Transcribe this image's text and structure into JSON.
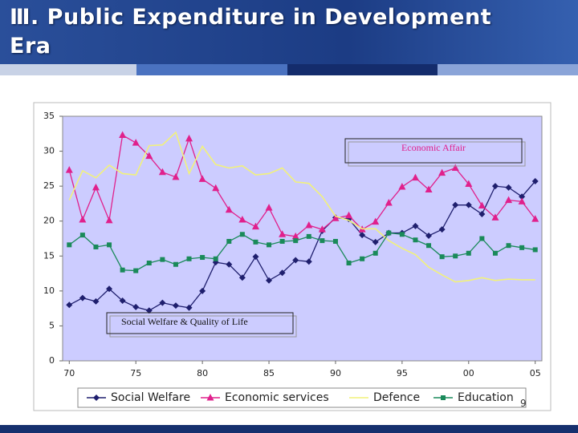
{
  "slide": {
    "title": "Ⅲ. Public Expenditure in Development Era",
    "page_number": "9"
  },
  "chart_data": {
    "type": "line",
    "x": [
      70,
      71,
      72,
      73,
      74,
      75,
      76,
      77,
      78,
      79,
      80,
      81,
      82,
      83,
      84,
      85,
      86,
      87,
      88,
      89,
      90,
      91,
      92,
      93,
      94,
      95,
      96,
      97,
      98,
      99,
      100,
      101,
      102,
      103,
      104,
      105
    ],
    "xlim": [
      69.5,
      105.5
    ],
    "xticks": [
      70,
      75,
      80,
      85,
      90,
      95,
      {
        "value": 100,
        "label": "00"
      },
      {
        "value": 105,
        "label": "05"
      }
    ],
    "ylim": [
      0,
      35
    ],
    "yticks": [
      0,
      5,
      10,
      15,
      20,
      25,
      30,
      35
    ],
    "grid": false,
    "plot_background": "#ccccff",
    "legend": "bottom",
    "annotations": [
      "Economic Affair",
      "Social Welfare & Quality of Life"
    ],
    "series": [
      {
        "name": "Social Welfare",
        "color": "#1f1f6e",
        "marker": "diamond",
        "values": [
          8.0,
          9.0,
          8.5,
          10.3,
          8.6,
          7.7,
          7.2,
          8.3,
          7.9,
          7.6,
          10.0,
          14.1,
          13.8,
          11.9,
          14.9,
          11.5,
          12.6,
          14.4,
          14.2,
          18.6,
          20.5,
          20.3,
          18.0,
          17.0,
          18.3,
          18.3,
          19.3,
          17.9,
          18.8,
          22.3,
          22.3,
          21.0,
          25.0,
          24.8,
          23.5,
          25.7
        ]
      },
      {
        "name": "Economic services",
        "color": "#e0208c",
        "marker": "triangle",
        "values": [
          27.3,
          20.2,
          24.8,
          20.1,
          32.3,
          31.2,
          29.3,
          27.0,
          26.3,
          31.8,
          26.0,
          24.7,
          21.6,
          20.2,
          19.2,
          21.9,
          18.1,
          17.8,
          19.4,
          18.8,
          20.4,
          20.8,
          18.8,
          19.9,
          22.6,
          24.9,
          26.2,
          24.5,
          26.9,
          27.6,
          25.3,
          22.2,
          20.5,
          23.0,
          22.8,
          20.3
        ]
      },
      {
        "name": "Defence",
        "color": "#f2f27a",
        "marker": "none",
        "values": [
          23.0,
          27.2,
          26.2,
          28.0,
          26.8,
          26.6,
          30.8,
          30.9,
          32.7,
          26.8,
          30.7,
          28.1,
          27.6,
          27.9,
          26.6,
          26.8,
          27.6,
          25.6,
          25.4,
          23.5,
          20.7,
          20.1,
          18.9,
          18.9,
          17.2,
          16.1,
          15.2,
          13.4,
          12.3,
          11.3,
          11.5,
          11.9,
          11.5,
          11.7,
          11.6,
          11.6
        ]
      },
      {
        "name": "Education",
        "color": "#1a8a5a",
        "marker": "square",
        "values": [
          16.6,
          18.0,
          16.3,
          16.6,
          13.0,
          12.9,
          14.0,
          14.5,
          13.8,
          14.6,
          14.8,
          14.6,
          17.1,
          18.1,
          17.0,
          16.6,
          17.1,
          17.2,
          17.8,
          17.2,
          17.1,
          14.0,
          14.6,
          15.4,
          18.3,
          18.1,
          17.3,
          16.5,
          14.9,
          15.0,
          15.4,
          17.5,
          15.4,
          16.5,
          16.2,
          15.9
        ]
      }
    ]
  }
}
